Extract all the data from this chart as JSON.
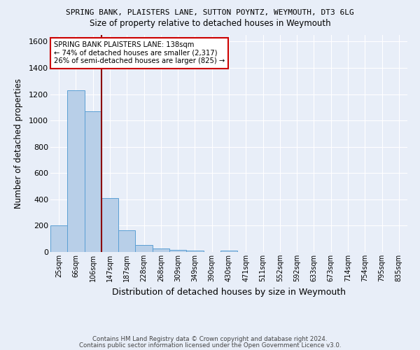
{
  "title1": "SPRING BANK, PLAISTERS LANE, SUTTON POYNTZ, WEYMOUTH, DT3 6LG",
  "title2": "Size of property relative to detached houses in Weymouth",
  "xlabel": "Distribution of detached houses by size in Weymouth",
  "ylabel": "Number of detached properties",
  "footer1": "Contains HM Land Registry data © Crown copyright and database right 2024.",
  "footer2": "Contains public sector information licensed under the Open Government Licence v3.0.",
  "categories": [
    "25sqm",
    "66sqm",
    "106sqm",
    "147sqm",
    "187sqm",
    "228sqm",
    "268sqm",
    "309sqm",
    "349sqm",
    "390sqm",
    "430sqm",
    "471sqm",
    "511sqm",
    "552sqm",
    "592sqm",
    "633sqm",
    "673sqm",
    "714sqm",
    "754sqm",
    "795sqm",
    "835sqm"
  ],
  "values": [
    200,
    1230,
    1070,
    410,
    165,
    52,
    25,
    18,
    12,
    0,
    12,
    0,
    0,
    0,
    0,
    0,
    0,
    0,
    0,
    0,
    0
  ],
  "bar_color": "#b8cfe8",
  "bar_edge_color": "#5a9fd4",
  "background_color": "#e8eef8",
  "grid_color": "#ffffff",
  "vline_x": 2.5,
  "vline_color": "#8b0000",
  "annotation_text": "SPRING BANK PLAISTERS LANE: 138sqm\n← 74% of detached houses are smaller (2,317)\n26% of semi-detached houses are larger (825) →",
  "annotation_box_facecolor": "#ffffff",
  "annotation_box_edgecolor": "#cc0000",
  "ylim": [
    0,
    1650
  ],
  "yticks": [
    0,
    200,
    400,
    600,
    800,
    1000,
    1200,
    1400,
    1600
  ]
}
